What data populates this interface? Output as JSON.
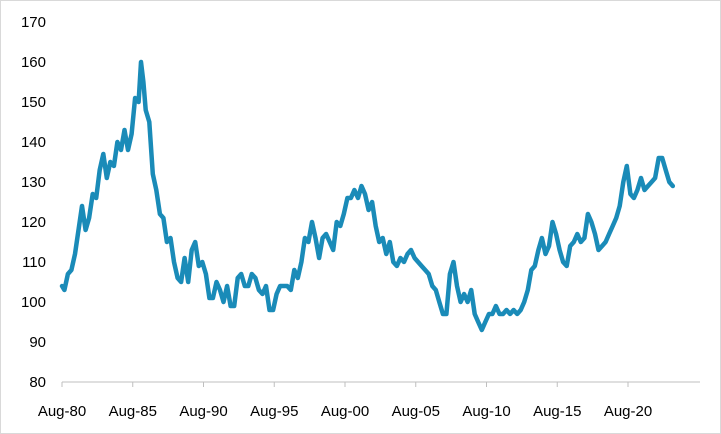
{
  "chart_data": {
    "type": "line",
    "title": "",
    "xlabel": "",
    "ylabel": "",
    "ylim": [
      80,
      170
    ],
    "y_ticks": [
      80,
      90,
      100,
      110,
      120,
      130,
      140,
      150,
      160,
      170
    ],
    "x_range": [
      "Aug-80",
      "Jan-25"
    ],
    "x_ticks": [
      "Aug-80",
      "Aug-85",
      "Aug-90",
      "Aug-95",
      "Aug-00",
      "Aug-05",
      "Aug-10",
      "Aug-15",
      "Aug-20"
    ],
    "grid": false,
    "legend": "none",
    "series": [
      {
        "color": "#1a8bb8",
        "points": [
          [
            "Aug-80",
            104
          ],
          [
            "Oct-80",
            103
          ],
          [
            "Jan-81",
            107
          ],
          [
            "Apr-81",
            108
          ],
          [
            "Jul-81",
            112
          ],
          [
            "Oct-81",
            118
          ],
          [
            "Jan-82",
            124
          ],
          [
            "Apr-82",
            118
          ],
          [
            "Jul-82",
            121
          ],
          [
            "Oct-82",
            127
          ],
          [
            "Jan-83",
            126
          ],
          [
            "Apr-83",
            133
          ],
          [
            "Jul-83",
            137
          ],
          [
            "Oct-83",
            131
          ],
          [
            "Jan-84",
            135
          ],
          [
            "Apr-84",
            134
          ],
          [
            "Jul-84",
            140
          ],
          [
            "Oct-84",
            138
          ],
          [
            "Jan-85",
            143
          ],
          [
            "Apr-85",
            138
          ],
          [
            "Jul-85",
            142
          ],
          [
            "Oct-85",
            151
          ],
          [
            "Jan-86",
            150
          ],
          [
            "Mar-86",
            160
          ],
          [
            "May-86",
            155
          ],
          [
            "Jul-86",
            148
          ],
          [
            "Oct-86",
            145
          ],
          [
            "Jan-87",
            132
          ],
          [
            "Apr-87",
            128
          ],
          [
            "Jul-87",
            122
          ],
          [
            "Oct-87",
            121
          ],
          [
            "Jan-88",
            115
          ],
          [
            "Apr-88",
            116
          ],
          [
            "Jul-88",
            110
          ],
          [
            "Oct-88",
            106
          ],
          [
            "Jan-89",
            105
          ],
          [
            "Apr-89",
            111
          ],
          [
            "Jul-89",
            105
          ],
          [
            "Oct-89",
            113
          ],
          [
            "Jan-90",
            115
          ],
          [
            "Apr-90",
            109
          ],
          [
            "Jul-90",
            110
          ],
          [
            "Oct-90",
            107
          ],
          [
            "Jan-91",
            101
          ],
          [
            "Apr-91",
            101
          ],
          [
            "Jul-91",
            105
          ],
          [
            "Oct-91",
            103
          ],
          [
            "Jan-92",
            100
          ],
          [
            "Apr-92",
            104
          ],
          [
            "Jul-92",
            99
          ],
          [
            "Oct-92",
            99
          ],
          [
            "Jan-93",
            106
          ],
          [
            "Apr-93",
            107
          ],
          [
            "Jul-93",
            104
          ],
          [
            "Oct-93",
            104
          ],
          [
            "Jan-94",
            107
          ],
          [
            "Apr-94",
            106
          ],
          [
            "Jul-94",
            103
          ],
          [
            "Oct-94",
            102
          ],
          [
            "Jan-95",
            104
          ],
          [
            "Apr-95",
            98
          ],
          [
            "Jul-95",
            98
          ],
          [
            "Oct-95",
            102
          ],
          [
            "Jan-96",
            104
          ],
          [
            "Apr-96",
            104
          ],
          [
            "Jul-96",
            104
          ],
          [
            "Oct-96",
            103
          ],
          [
            "Jan-97",
            108
          ],
          [
            "Apr-97",
            106
          ],
          [
            "Jul-97",
            110
          ],
          [
            "Oct-97",
            116
          ],
          [
            "Jan-98",
            115
          ],
          [
            "Apr-98",
            120
          ],
          [
            "Jul-98",
            116
          ],
          [
            "Oct-98",
            111
          ],
          [
            "Jan-99",
            116
          ],
          [
            "Apr-99",
            117
          ],
          [
            "Jul-99",
            115
          ],
          [
            "Oct-99",
            113
          ],
          [
            "Jan-00",
            120
          ],
          [
            "Apr-00",
            119
          ],
          [
            "Jul-00",
            122
          ],
          [
            "Oct-00",
            126
          ],
          [
            "Jan-01",
            126
          ],
          [
            "Apr-01",
            128
          ],
          [
            "Jul-01",
            126
          ],
          [
            "Oct-01",
            129
          ],
          [
            "Jan-02",
            127
          ],
          [
            "Apr-02",
            123
          ],
          [
            "Jul-02",
            125
          ],
          [
            "Oct-02",
            119
          ],
          [
            "Jan-03",
            115
          ],
          [
            "Apr-03",
            116
          ],
          [
            "Jul-03",
            112
          ],
          [
            "Oct-03",
            115
          ],
          [
            "Jan-04",
            110
          ],
          [
            "Apr-04",
            109
          ],
          [
            "Jul-04",
            111
          ],
          [
            "Oct-04",
            110
          ],
          [
            "Jan-05",
            112
          ],
          [
            "Apr-05",
            113
          ],
          [
            "Jul-05",
            111
          ],
          [
            "Oct-05",
            110
          ],
          [
            "Jan-06",
            109
          ],
          [
            "Apr-06",
            108
          ],
          [
            "Jul-06",
            107
          ],
          [
            "Oct-06",
            104
          ],
          [
            "Jan-07",
            103
          ],
          [
            "Apr-07",
            100
          ],
          [
            "Jul-07",
            97
          ],
          [
            "Oct-07",
            97
          ],
          [
            "Jan-08",
            107
          ],
          [
            "Apr-08",
            110
          ],
          [
            "Jul-08",
            104
          ],
          [
            "Oct-08",
            100
          ],
          [
            "Jan-09",
            102
          ],
          [
            "Apr-09",
            100
          ],
          [
            "Jul-09",
            103
          ],
          [
            "Oct-09",
            97
          ],
          [
            "Jan-10",
            95
          ],
          [
            "Apr-10",
            93
          ],
          [
            "Jul-10",
            95
          ],
          [
            "Oct-10",
            97
          ],
          [
            "Jan-11",
            97
          ],
          [
            "Apr-11",
            99
          ],
          [
            "Jul-11",
            97
          ],
          [
            "Oct-11",
            97
          ],
          [
            "Jan-12",
            98
          ],
          [
            "Apr-12",
            97
          ],
          [
            "Jul-12",
            98
          ],
          [
            "Oct-12",
            97
          ],
          [
            "Jan-13",
            98
          ],
          [
            "Apr-13",
            100
          ],
          [
            "Jul-13",
            103
          ],
          [
            "Oct-13",
            108
          ],
          [
            "Jan-14",
            109
          ],
          [
            "Apr-14",
            113
          ],
          [
            "Jul-14",
            116
          ],
          [
            "Oct-14",
            112
          ],
          [
            "Jan-15",
            114
          ],
          [
            "Apr-15",
            120
          ],
          [
            "Jul-15",
            117
          ],
          [
            "Oct-15",
            113
          ],
          [
            "Jan-16",
            110
          ],
          [
            "Apr-16",
            109
          ],
          [
            "Jul-16",
            114
          ],
          [
            "Oct-16",
            115
          ],
          [
            "Jan-17",
            117
          ],
          [
            "Apr-17",
            115
          ],
          [
            "Jul-17",
            116
          ],
          [
            "Oct-17",
            122
          ],
          [
            "Jan-18",
            120
          ],
          [
            "Apr-18",
            117
          ],
          [
            "Jul-18",
            113
          ],
          [
            "Oct-18",
            114
          ],
          [
            "Jan-19",
            115
          ],
          [
            "Apr-19",
            117
          ],
          [
            "Jul-19",
            119
          ],
          [
            "Oct-19",
            121
          ],
          [
            "Jan-20",
            124
          ],
          [
            "Apr-20",
            130
          ],
          [
            "Jul-20",
            134
          ],
          [
            "Oct-20",
            127
          ],
          [
            "Jan-21",
            126
          ],
          [
            "Apr-21",
            128
          ],
          [
            "Jul-21",
            131
          ],
          [
            "Oct-21",
            128
          ],
          [
            "Jan-22",
            129
          ],
          [
            "Apr-22",
            130
          ],
          [
            "Jul-22",
            131
          ],
          [
            "Oct-22",
            136
          ],
          [
            "Jan-23",
            136
          ],
          [
            "Apr-23",
            133
          ],
          [
            "Jul-23",
            130
          ],
          [
            "Oct-23",
            129
          ]
        ]
      }
    ]
  }
}
